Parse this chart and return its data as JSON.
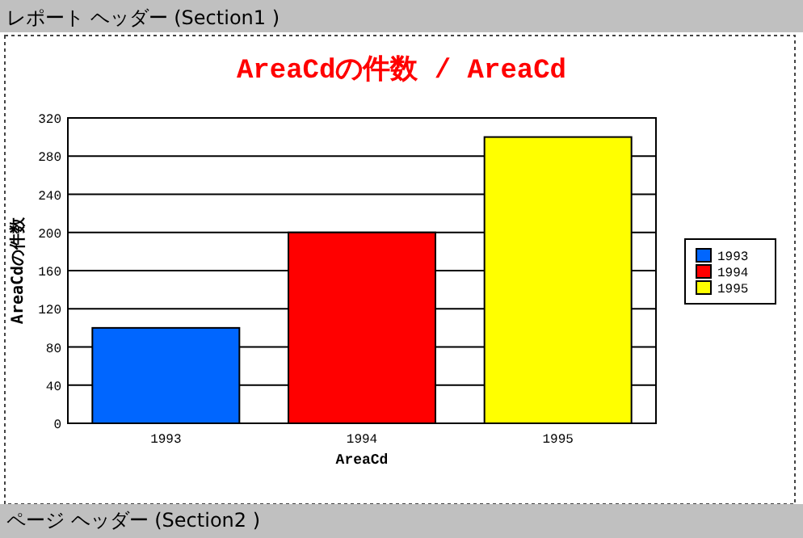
{
  "chart_data": {
    "type": "bar",
    "title": "AreaCdの件数 / AreaCd",
    "xlabel": "AreaCd",
    "ylabel": "AreaCdの件数",
    "categories": [
      "1993",
      "1994",
      "1995"
    ],
    "series": [
      {
        "name": "1993",
        "color": "#0066ff",
        "values": [
          100,
          null,
          null
        ]
      },
      {
        "name": "1994",
        "color": "#ff0000",
        "values": [
          null,
          200,
          null
        ]
      },
      {
        "name": "1995",
        "color": "#ffff00",
        "values": [
          null,
          null,
          300
        ]
      }
    ],
    "ylim": [
      0,
      320
    ],
    "yticks": [
      0,
      40,
      80,
      120,
      160,
      200,
      240,
      280,
      320
    ],
    "grid": "y",
    "legend": "right",
    "annotations": [
      "レポート ヘッダー (Section1 )",
      "ページ ヘッダー (Section2 )"
    ]
  }
}
